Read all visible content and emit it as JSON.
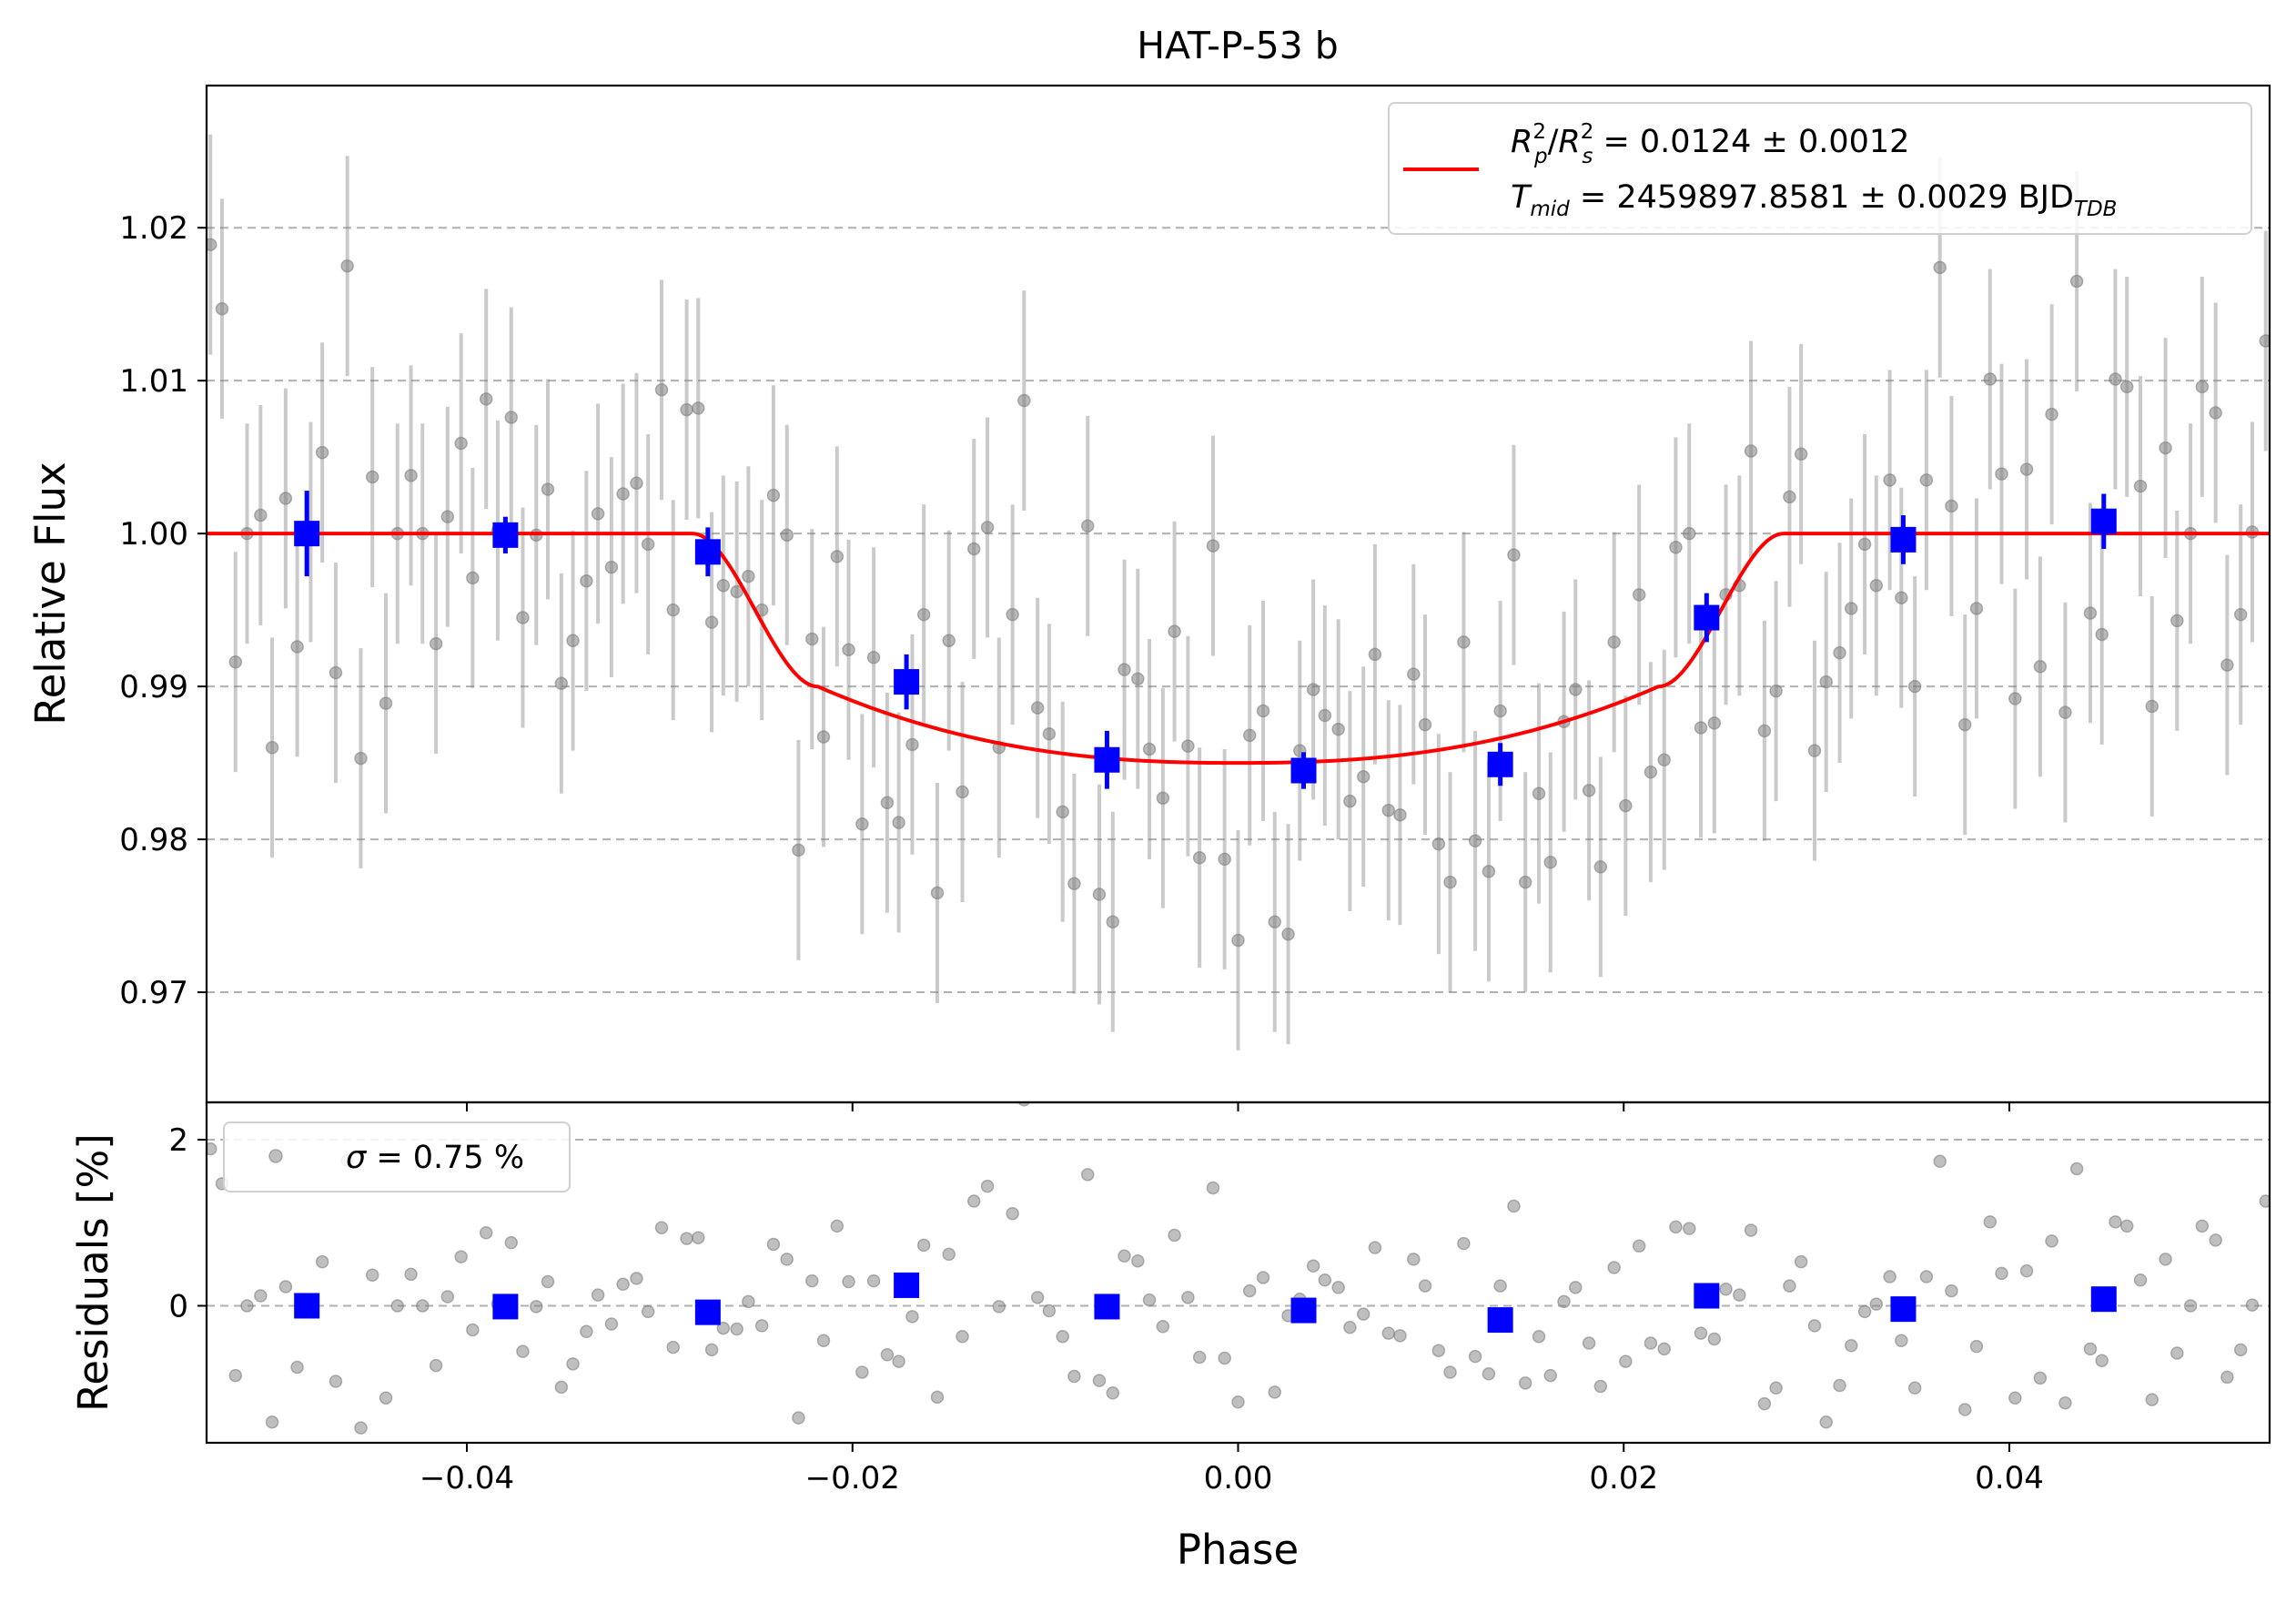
{
  "chart_data": [
    {
      "panel": "top",
      "type": "scatter",
      "title": "HAT-P-53 b",
      "xlabel": "",
      "ylabel": "Relative Flux",
      "xlim": [
        -0.0535,
        0.0535
      ],
      "ylim": [
        0.9628,
        1.0293
      ],
      "yticks": [
        0.97,
        0.98,
        0.99,
        1.0,
        1.01,
        1.02
      ],
      "ytick_labels": [
        "0.97",
        "0.98",
        "0.99",
        "1.00",
        "1.01",
        "1.02"
      ],
      "grid": "y, dashed",
      "legend": {
        "position": "top-right",
        "entries": [
          {
            "line1": "R²ₚ/R²ₛ = 0.0124 ± 0.0012",
            "line2": "Tₘᵢ𝒹 = 2459897.8581 ± 0.0029 BJD_TDB"
          }
        ],
        "line1_main": "R",
        "line1_rest": " = 0.0124 ± 0.0012",
        "line2_main": "T",
        "line2_sub": "mid",
        "line2_rest": " = 2459897.8581 ± 0.0029 BJD",
        "line2_unit_sub": "TDB"
      },
      "model": {
        "color": "#ff0000",
        "depth": 0.015,
        "t_contact_outer": 0.0283,
        "t_contact_inner": 0.0218
      },
      "data_points": {
        "color": "#808080",
        "error": 0.0072,
        "x": [
          -0.0533,
          -0.0527,
          -0.052,
          -0.0514,
          -0.0507,
          -0.0501,
          -0.0494,
          -0.0488,
          -0.0481,
          -0.0475,
          -0.0468,
          -0.0462,
          -0.0455,
          -0.0449,
          -0.0442,
          -0.0436,
          -0.0429,
          -0.0423,
          -0.0416,
          -0.041,
          -0.0403,
          -0.0397,
          -0.039,
          -0.0384,
          -0.0377,
          -0.0371,
          -0.0364,
          -0.0358,
          -0.0351,
          -0.0345,
          -0.0338,
          -0.0332,
          -0.0325,
          -0.0319,
          -0.0312,
          -0.0306,
          -0.0299,
          -0.0293,
          -0.0286,
          -0.028,
          -0.0273,
          -0.0267,
          -0.026,
          -0.0254,
          -0.0247,
          -0.0241,
          -0.0234,
          -0.0228,
          -0.0221,
          -0.0215,
          -0.0208,
          -0.0202,
          -0.0195,
          -0.0189,
          -0.0182,
          -0.0176,
          -0.0169,
          -0.0163,
          -0.0156,
          -0.015,
          -0.0143,
          -0.0137,
          -0.013,
          -0.0124,
          -0.0117,
          -0.0111,
          -0.0104,
          -0.0098,
          -0.0091,
          -0.0085,
          -0.0078,
          -0.0072,
          -0.0065,
          -0.0059,
          -0.0052,
          -0.0046,
          -0.0039,
          -0.0033,
          -0.0026,
          -0.002,
          -0.0013,
          -0.0007,
          0.0,
          0.0006,
          0.0013,
          0.0019,
          0.0026,
          0.0032,
          0.0039,
          0.0045,
          0.0052,
          0.0058,
          0.0065,
          0.0071,
          0.0078,
          0.0084,
          0.0091,
          0.0097,
          0.0104,
          0.011,
          0.0117,
          0.0123,
          0.013,
          0.0136,
          0.0143,
          0.0149,
          0.0156,
          0.0162,
          0.0169,
          0.0175,
          0.0182,
          0.0188,
          0.0195,
          0.0201,
          0.0208,
          0.0214,
          0.0221,
          0.0227,
          0.0234,
          0.024,
          0.0247,
          0.0253,
          0.026,
          0.0266,
          0.0273,
          0.0279,
          0.0286,
          0.0292,
          0.0299,
          0.0305,
          0.0312,
          0.0318,
          0.0325,
          0.0331,
          0.0338,
          0.0344,
          0.0351,
          0.0357,
          0.0364,
          0.037,
          0.0377,
          0.0383,
          0.039,
          0.0396,
          0.0403,
          0.0409,
          0.0416,
          0.0422,
          0.0429,
          0.0435,
          0.0442,
          0.0448,
          0.0455,
          0.0461,
          0.0468,
          0.0474,
          0.0481,
          0.0487,
          0.0494,
          0.05,
          0.0507,
          0.0513,
          0.052,
          0.0526,
          0.0533
        ],
        "y": [
          1.0189,
          1.0147,
          0.9916,
          1.0,
          1.0012,
          0.986,
          1.0023,
          0.9926,
          1.0001,
          1.0053,
          0.9909,
          1.0175,
          0.9853,
          1.0037,
          0.9889,
          1.0,
          1.0038,
          1.0,
          0.9928,
          1.0011,
          1.0059,
          0.9971,
          1.0088,
          1.0002,
          1.0076,
          0.9945,
          0.9999,
          1.0029,
          0.9902,
          0.993,
          0.9969,
          1.0013,
          0.9978,
          1.0026,
          1.0033,
          0.9993,
          1.0094,
          0.995,
          1.0081,
          1.0082,
          0.9942,
          0.9966,
          0.9962,
          0.9972,
          0.995,
          1.0025,
          0.9999,
          0.9793,
          0.9931,
          0.9867,
          0.9985,
          0.9924,
          0.981,
          0.9919,
          0.9824,
          0.9811,
          0.9862,
          0.9947,
          0.9765,
          0.993,
          0.9831,
          0.999,
          1.0004,
          0.986,
          0.9947,
          1.0087,
          0.9886,
          0.9869,
          0.9818,
          0.9771,
          1.0005,
          0.9764,
          0.9746,
          0.9911,
          0.9905,
          0.9859,
          0.9827,
          0.9936,
          0.9861,
          0.9788,
          0.9992,
          0.9787,
          0.9734,
          0.9868,
          0.9884,
          0.9746,
          0.9738,
          0.9858,
          0.9898,
          0.9881,
          0.9872,
          0.9825,
          0.9841,
          0.9921,
          0.9819,
          0.9816,
          0.9908,
          0.9875,
          0.9797,
          0.9772,
          0.9929,
          0.9799,
          0.9779,
          0.9884,
          0.9986,
          0.9772,
          0.983,
          0.9785,
          0.9877,
          0.9898,
          0.9832,
          0.9782,
          0.9929,
          0.9822,
          0.996,
          0.9844,
          0.9852,
          0.9991,
          1.0,
          0.9873,
          0.9876,
          0.996,
          0.9966,
          1.0054,
          0.9871,
          0.9897,
          1.0024,
          1.0052,
          0.9858,
          0.9903,
          0.9922,
          0.9951,
          0.9993,
          0.9966,
          1.0035,
          0.9958,
          0.99,
          1.0035,
          1.0174,
          1.0018,
          0.9875,
          0.9951,
          1.0101,
          1.0039,
          0.9892,
          1.0042,
          0.9913,
          1.0078,
          0.9883,
          1.0165,
          0.9948,
          0.9934,
          1.0101,
          1.0096,
          1.0031,
          0.9887,
          1.0056,
          0.9943,
          1.0,
          1.0096,
          1.0079,
          0.9914,
          0.9947,
          1.0001,
          1.0126
        ]
      },
      "binned_points": {
        "color": "#0000ff",
        "x": [
          -0.0483,
          -0.038,
          -0.0275,
          -0.0172,
          -0.0068,
          0.0034,
          0.0136,
          0.0243,
          0.0345,
          0.0449
        ],
        "y": [
          1.0,
          0.9999,
          0.9988,
          0.9903,
          0.9852,
          0.9845,
          0.9849,
          0.9945,
          0.9996,
          1.0008
        ],
        "err": [
          0.0028,
          0.0012,
          0.0016,
          0.0018,
          0.0019,
          0.0012,
          0.0014,
          0.0016,
          0.0016,
          0.0018
        ]
      }
    },
    {
      "panel": "bottom",
      "type": "scatter",
      "xlabel": "Phase",
      "ylabel": "Residuals [%]",
      "xlim": [
        -0.0535,
        0.0535
      ],
      "ylim": [
        -1.65,
        2.45
      ],
      "xticks": [
        -0.04,
        -0.02,
        0.0,
        0.02,
        0.04
      ],
      "xtick_labels": [
        "−0.04",
        "−0.02",
        "0.00",
        "0.02",
        "0.04"
      ],
      "yticks": [
        0,
        2
      ],
      "ytick_labels": [
        "0",
        "2"
      ],
      "grid": "y, dashed",
      "legend": {
        "position": "top-left",
        "symbol": "σ",
        "text": " = 0.75 %"
      },
      "residuals": [
        1.89,
        1.47,
        -0.84,
        0.0,
        0.12,
        -1.4,
        0.23,
        -0.74,
        0.01,
        0.53,
        -0.91,
        1.75,
        -1.47,
        0.37,
        -1.11,
        0.0,
        0.38,
        0.0,
        -0.72,
        0.11,
        0.59,
        -0.29,
        0.88,
        0.02,
        0.76,
        -0.55,
        -0.01,
        0.29,
        -0.98,
        -0.7,
        -0.31,
        0.13,
        -0.22,
        0.26,
        0.33,
        -0.07,
        0.94,
        -0.5,
        0.81,
        0.82,
        -0.53,
        -0.27,
        -0.28,
        0.05,
        -0.24,
        0.74,
        0.56,
        -1.35,
        0.3,
        -0.42,
        0.96,
        0.29,
        -0.8,
        0.3,
        -0.59,
        -0.67,
        -0.13,
        0.73,
        -1.1,
        0.62,
        -0.37,
        1.26,
        1.44,
        -0.01,
        1.11,
        2.48,
        0.1,
        -0.06,
        -0.37,
        -0.85,
        1.58,
        -0.9,
        -1.05,
        0.6,
        0.54,
        0.07,
        -0.25,
        0.85,
        0.1,
        -0.62,
        1.42,
        -0.63,
        -1.16,
        0.18,
        0.34,
        -1.04,
        -0.12,
        0.08,
        0.48,
        0.31,
        0.22,
        -0.26,
        -0.1,
        0.7,
        -0.33,
        -0.36,
        0.56,
        0.24,
        -0.54,
        -0.8,
        0.75,
        -0.61,
        -0.82,
        0.24,
        1.2,
        -0.93,
        -0.37,
        -0.84,
        0.05,
        0.22,
        -0.45,
        -0.97,
        0.46,
        -0.67,
        0.72,
        -0.45,
        -0.52,
        0.95,
        0.93,
        -0.33,
        -0.4,
        0.2,
        0.13,
        0.91,
        -1.18,
        -0.99,
        0.24,
        0.53,
        -0.24,
        -1.4,
        -0.96,
        -0.48,
        -0.07,
        0.02,
        0.35,
        -0.42,
        -0.99,
        0.35,
        1.74,
        0.18,
        -1.25,
        -0.49,
        1.01,
        0.39,
        -1.11,
        0.42,
        -0.87,
        0.78,
        -1.17,
        1.65,
        -0.52,
        -0.66,
        1.01,
        0.96,
        0.31,
        -1.13,
        0.56,
        -0.57,
        0.0,
        0.96,
        0.79,
        -0.86,
        -0.53,
        0.01,
        1.26
      ]
    }
  ]
}
